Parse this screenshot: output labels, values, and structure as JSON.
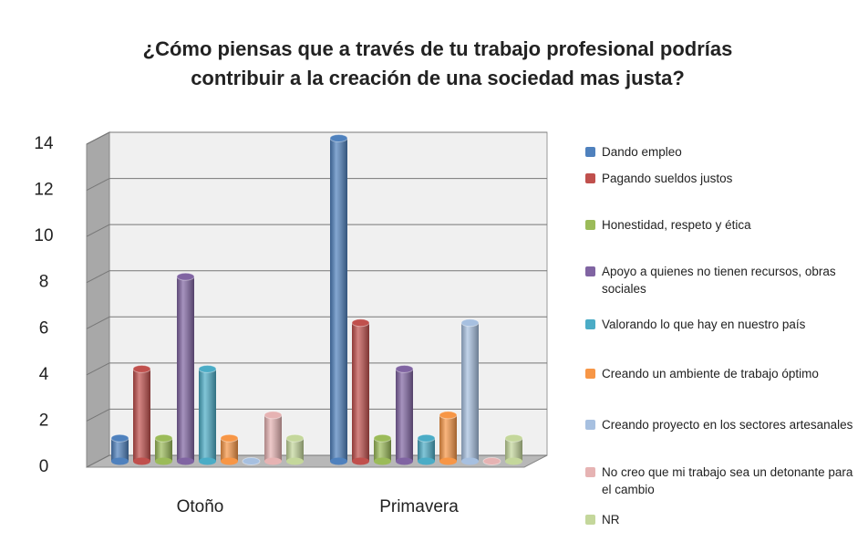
{
  "chart_data": {
    "type": "bar3d",
    "title": "¿Cómo piensas que a través de tu trabajo profesional podrías contribuir a la creación de una sociedad mas justa?",
    "categories": [
      "Otoño",
      "Primavera"
    ],
    "series": [
      {
        "name": "Dando empleo",
        "color": "#4f81bd",
        "values": [
          1,
          14
        ]
      },
      {
        "name": "Pagando sueldos justos",
        "color": "#c0504d",
        "values": [
          4,
          6
        ]
      },
      {
        "name": "Honestidad, respeto y ética",
        "color": "#9bbb59",
        "values": [
          1,
          1
        ]
      },
      {
        "name": "Apoyo a quienes no tienen recursos, obras sociales",
        "color": "#8064a2",
        "values": [
          8,
          4
        ]
      },
      {
        "name": "Valorando lo que hay en nuestro país",
        "color": "#4bacc6",
        "values": [
          4,
          1
        ]
      },
      {
        "name": "Creando un ambiente de trabajo óptimo",
        "color": "#f79646",
        "values": [
          1,
          2
        ]
      },
      {
        "name": "Creando proyecto en los sectores artesanales",
        "color": "#a7c0e0",
        "values": [
          0,
          6
        ]
      },
      {
        "name": "No creo que mi trabajo sea un detonante para el cambio",
        "color": "#e6b3b3",
        "values": [
          2,
          0
        ]
      },
      {
        "name": "NR",
        "color": "#c4d79b",
        "values": [
          1,
          1
        ]
      }
    ],
    "ylim": [
      0,
      14
    ],
    "yticks": [
      0,
      2,
      4,
      6,
      8,
      10,
      12,
      14
    ],
    "grid": true,
    "legend": "right"
  }
}
